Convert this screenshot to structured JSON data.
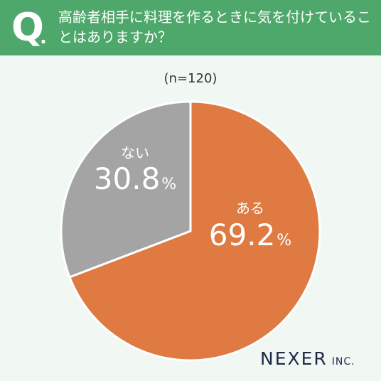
{
  "header": {
    "q_mark": "Q",
    "q_dot": ".",
    "question": "高齢者相手に料理を作るときに気を付けていることはありますか？"
  },
  "sample_size": "(n=120)",
  "logo": {
    "main": "NEXER",
    "suffix": "INC."
  },
  "colors": {
    "header": "#4ea86b",
    "background": "#f1f8f3",
    "yes": "#df7b42",
    "no": "#a4a4a4"
  },
  "chart_data": {
    "type": "pie",
    "slices": [
      {
        "label": "ある",
        "value": 69.2,
        "value_text": "69.2",
        "unit": "%",
        "color": "#df7b42"
      },
      {
        "label": "ない",
        "value": 30.8,
        "value_text": "30.8",
        "unit": "%",
        "color": "#a4a4a4"
      }
    ]
  }
}
